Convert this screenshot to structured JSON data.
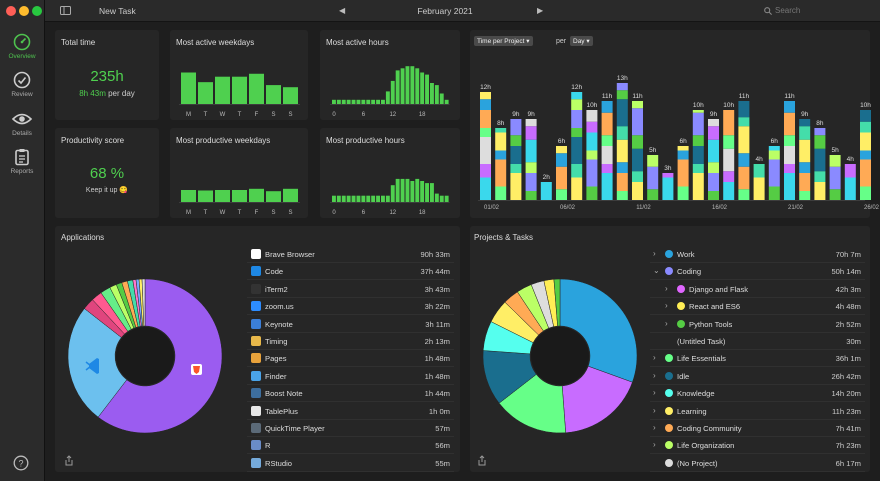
{
  "sidebar": {
    "items": [
      {
        "label": "Overview"
      },
      {
        "label": "Review"
      },
      {
        "label": "Details"
      },
      {
        "label": "Reports"
      }
    ]
  },
  "titlebar": {
    "task": "New Task",
    "month": "February 2021",
    "search_placeholder": "Search"
  },
  "stats": {
    "total": {
      "title": "Total time",
      "value": "235h",
      "per_day": "8h 43m",
      "per_day_label": "per day"
    },
    "productivity": {
      "title": "Productivity score",
      "value": "68 %",
      "caption": "Keep it up 😋"
    },
    "active_weekdays": {
      "title": "Most active weekdays",
      "labels": [
        "M",
        "T",
        "W",
        "T",
        "F",
        "S",
        "S"
      ],
      "values": [
        0.75,
        0.52,
        0.65,
        0.65,
        0.72,
        0.45,
        0.4
      ]
    },
    "productive_weekdays": {
      "title": "Most productive weekdays",
      "labels": [
        "M",
        "T",
        "W",
        "T",
        "F",
        "S",
        "S"
      ],
      "values": [
        0.5,
        0.48,
        0.5,
        0.5,
        0.55,
        0.45,
        0.55
      ]
    },
    "active_hours": {
      "title": "Most active hours",
      "labels": [
        "0",
        "6",
        "12",
        "18"
      ],
      "values": [
        0.1,
        0.1,
        0.1,
        0.1,
        0.1,
        0.1,
        0.1,
        0.1,
        0.1,
        0.1,
        0.1,
        0.3,
        0.55,
        0.8,
        0.85,
        0.9,
        0.9,
        0.85,
        0.75,
        0.7,
        0.5,
        0.45,
        0.25,
        0.1
      ]
    },
    "productive_hours": {
      "title": "Most productive hours",
      "labels": [
        "0",
        "6",
        "12",
        "18"
      ],
      "values": [
        0.15,
        0.15,
        0.15,
        0.15,
        0.15,
        0.15,
        0.15,
        0.15,
        0.15,
        0.15,
        0.15,
        0.15,
        0.4,
        0.55,
        0.55,
        0.55,
        0.5,
        0.55,
        0.5,
        0.45,
        0.45,
        0.2,
        0.15,
        0.15
      ]
    }
  },
  "dailychart": {
    "selector": "Time per Project",
    "per": "per",
    "unit": "Day",
    "x_labels": [
      "01/02",
      "06/02",
      "11/02",
      "16/02",
      "21/02",
      "26/02"
    ],
    "labels": [
      "12h",
      "8h",
      "9h",
      "9h",
      "2h",
      "6h",
      "12h",
      "10h",
      "11h",
      "13h",
      "11h",
      "5h",
      "3h",
      "6h",
      "10h",
      "9h",
      "10h",
      "11h",
      "4h",
      "6h",
      "11h",
      "9h",
      "8h",
      "5h",
      "4h",
      "10h"
    ],
    "totals": [
      12,
      8,
      9,
      9,
      2,
      6,
      12,
      10,
      11,
      13,
      11,
      5,
      3,
      6,
      10,
      9,
      10,
      11,
      4,
      6,
      11,
      9,
      8,
      5,
      4,
      10
    ],
    "ymax": 14
  },
  "applications": {
    "title": "Applications",
    "items": [
      {
        "name": "Brave Browser",
        "time": "90h 33m",
        "color": "#ffffff",
        "icon": "brave-icon"
      },
      {
        "name": "Code",
        "time": "37h 44m",
        "color": "#1e88e5",
        "icon": "vscode-icon"
      },
      {
        "name": "iTerm2",
        "time": "3h 43m",
        "color": "#333333",
        "icon": "terminal-icon"
      },
      {
        "name": "zoom.us",
        "time": "3h 22m",
        "color": "#2d8cff",
        "icon": "zoom-icon"
      },
      {
        "name": "Keynote",
        "time": "3h 11m",
        "color": "#3b7fd9",
        "icon": "keynote-icon"
      },
      {
        "name": "Timing",
        "time": "2h 13m",
        "color": "#e8b84a",
        "icon": "timing-icon"
      },
      {
        "name": "Pages",
        "time": "1h 48m",
        "color": "#e8a23b",
        "icon": "pages-icon"
      },
      {
        "name": "Finder",
        "time": "1h 48m",
        "color": "#4aa3e8",
        "icon": "finder-icon"
      },
      {
        "name": "Boost Note",
        "time": "1h 44m",
        "color": "#3d6e9e",
        "icon": "boostnote-icon"
      },
      {
        "name": "TablePlus",
        "time": "1h 0m",
        "color": "#e8e8e8",
        "icon": "tableplus-icon"
      },
      {
        "name": "QuickTime Player",
        "time": "57m",
        "color": "#5b6a78",
        "icon": "quicktime-icon"
      },
      {
        "name": "R",
        "time": "56m",
        "color": "#6a8cc7",
        "icon": "r-icon"
      },
      {
        "name": "RStudio",
        "time": "55m",
        "color": "#75aadb",
        "icon": "rstudio-icon"
      }
    ]
  },
  "projects": {
    "title": "Projects & Tasks",
    "items": [
      {
        "name": "Work",
        "time": "70h 7m",
        "color": "#2aa3dd",
        "level": 0,
        "chev": "›"
      },
      {
        "name": "Coding",
        "time": "50h 14m",
        "color": "#8a8aff",
        "level": 0,
        "chev": "⌄"
      },
      {
        "name": "Django and Flask",
        "time": "42h 3m",
        "color": "#e066ff",
        "level": 1,
        "chev": "›"
      },
      {
        "name": "React and ES6",
        "time": "4h 48m",
        "color": "#ffee55",
        "level": 1,
        "chev": "›"
      },
      {
        "name": "Python Tools",
        "time": "2h 52m",
        "color": "#55cc44",
        "level": 1,
        "chev": "›"
      },
      {
        "name": "(Untitled Task)",
        "time": "30m",
        "color": "",
        "level": 1,
        "chev": ""
      },
      {
        "name": "Life Essentials",
        "time": "36h 1m",
        "color": "#66ff88",
        "level": 0,
        "chev": "›"
      },
      {
        "name": "Idle",
        "time": "26h 42m",
        "color": "#1a6e8e",
        "level": 0,
        "chev": "›"
      },
      {
        "name": "Knowledge",
        "time": "14h 20m",
        "color": "#55ffee",
        "level": 0,
        "chev": "›"
      },
      {
        "name": "Learning",
        "time": "11h 23m",
        "color": "#ffee66",
        "level": 0,
        "chev": "›"
      },
      {
        "name": "Coding Community",
        "time": "7h 41m",
        "color": "#ffaa55",
        "level": 0,
        "chev": "›"
      },
      {
        "name": "Life Organization",
        "time": "7h 23m",
        "color": "#bbff66",
        "level": 0,
        "chev": "›"
      },
      {
        "name": "(No Project)",
        "time": "6h 17m",
        "color": "#dddddd",
        "level": 0,
        "chev": ""
      }
    ]
  }
}
